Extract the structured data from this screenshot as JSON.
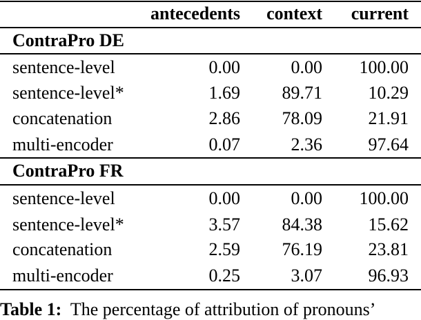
{
  "table": {
    "header": [
      "antecedents",
      "context",
      "current"
    ],
    "sections": [
      {
        "title": "ContraPro DE",
        "rows": [
          [
            "sentence-level",
            "0.00",
            "0.00",
            "100.00"
          ],
          [
            "sentence-level*",
            "1.69",
            "89.71",
            "10.29"
          ],
          [
            "concatenation",
            "2.86",
            "78.09",
            "21.91"
          ],
          [
            "multi-encoder",
            "0.07",
            "2.36",
            "97.64"
          ]
        ]
      },
      {
        "title": "ContraPro FR",
        "rows": [
          [
            "sentence-level",
            "0.00",
            "0.00",
            "100.00"
          ],
          [
            "sentence-level*",
            "3.57",
            "84.38",
            "15.62"
          ],
          [
            "concatenation",
            "2.59",
            "76.19",
            "23.81"
          ],
          [
            "multi-encoder",
            "0.25",
            "3.07",
            "96.93"
          ]
        ]
      }
    ]
  },
  "caption": {
    "label": "Table 1:",
    "text": "The percentage of attribution of pronouns’"
  }
}
